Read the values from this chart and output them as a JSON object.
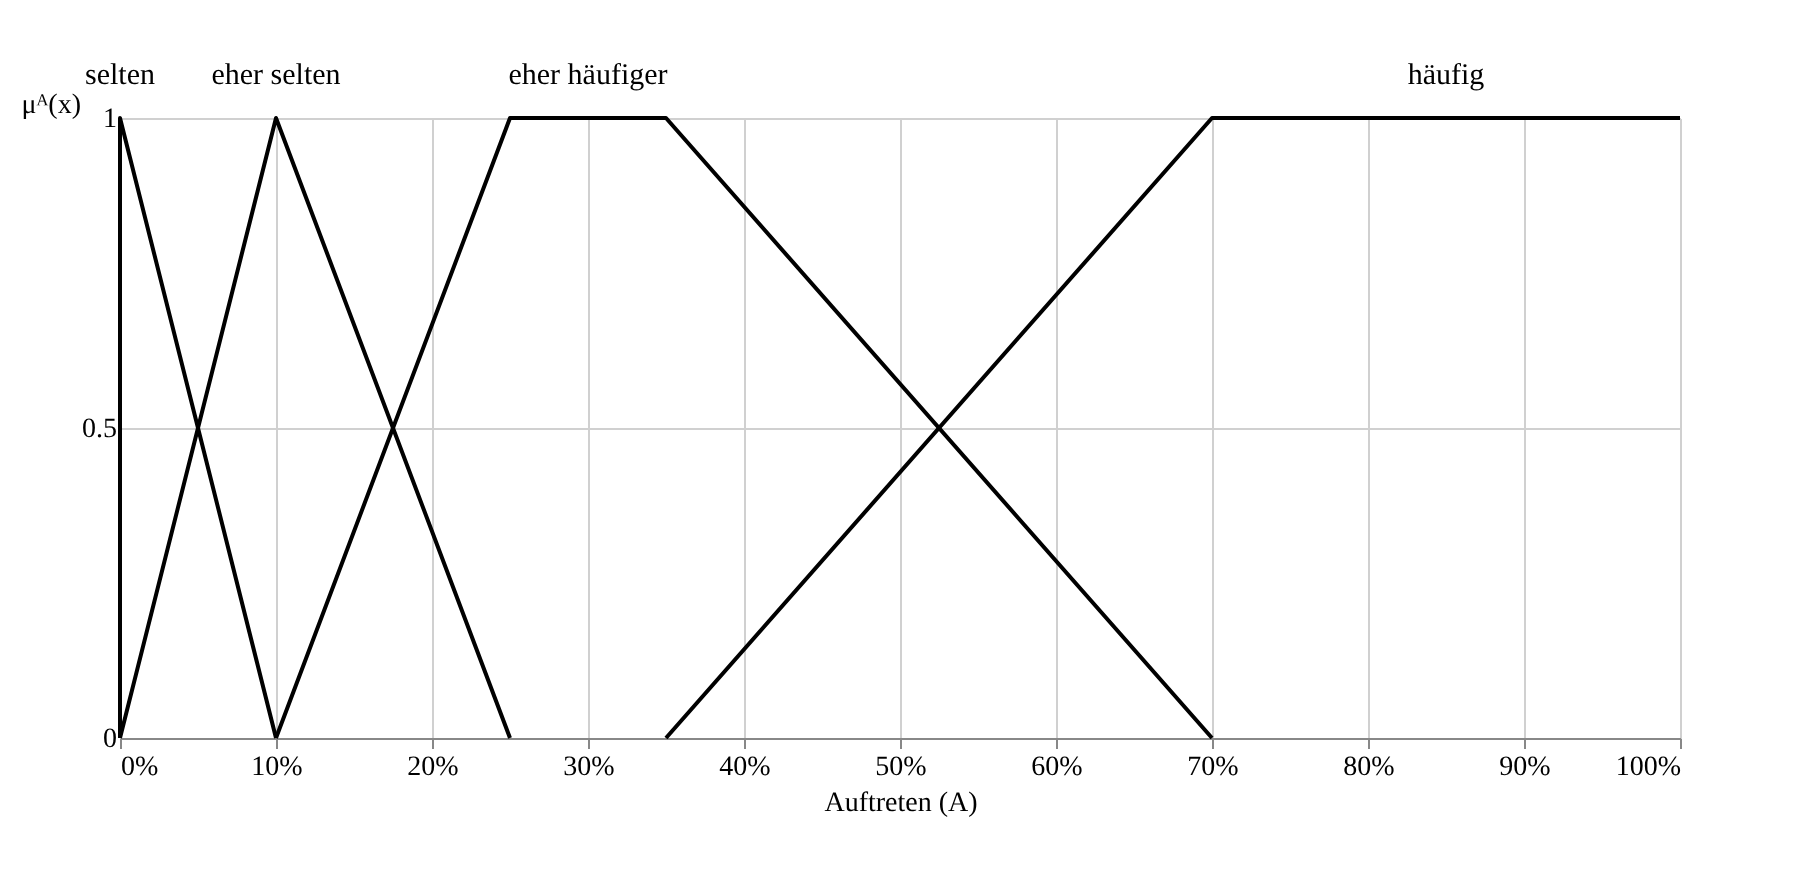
{
  "chart_data": {
    "type": "line",
    "xlabel": "Auftreten (A)",
    "ylabel": "μᴬ(x)",
    "series": [
      {
        "name": "selten",
        "color": "#000000",
        "x": [
          0,
          0,
          10
        ],
        "values": [
          0,
          1,
          0
        ]
      },
      {
        "name": "eher selten",
        "color": "#000000",
        "x": [
          0,
          10,
          25
        ],
        "values": [
          0,
          1,
          0
        ]
      },
      {
        "name": "eher häufiger",
        "color": "#000000",
        "x": [
          10,
          25,
          35,
          70
        ],
        "values": [
          0,
          1,
          1,
          0
        ]
      },
      {
        "name": "häufig",
        "color": "#000000",
        "x": [
          35,
          70,
          100
        ],
        "values": [
          0,
          1,
          1
        ]
      }
    ],
    "xlim": [
      0,
      100
    ],
    "xticks": [
      {
        "value": 0,
        "label": "0%"
      },
      {
        "value": 10,
        "label": "10%"
      },
      {
        "value": 20,
        "label": "20%"
      },
      {
        "value": 30,
        "label": "30%"
      },
      {
        "value": 40,
        "label": "40%"
      },
      {
        "value": 50,
        "label": "50%"
      },
      {
        "value": 60,
        "label": "60%"
      },
      {
        "value": 70,
        "label": "70%"
      },
      {
        "value": 80,
        "label": "80%"
      },
      {
        "value": 90,
        "label": "90%"
      },
      {
        "value": 100,
        "label": "100%"
      }
    ],
    "ylim": [
      0,
      1
    ],
    "yticks": [
      0,
      0.5,
      1
    ],
    "grid": true,
    "legend": false,
    "marker": "none",
    "line_style": "solid"
  }
}
